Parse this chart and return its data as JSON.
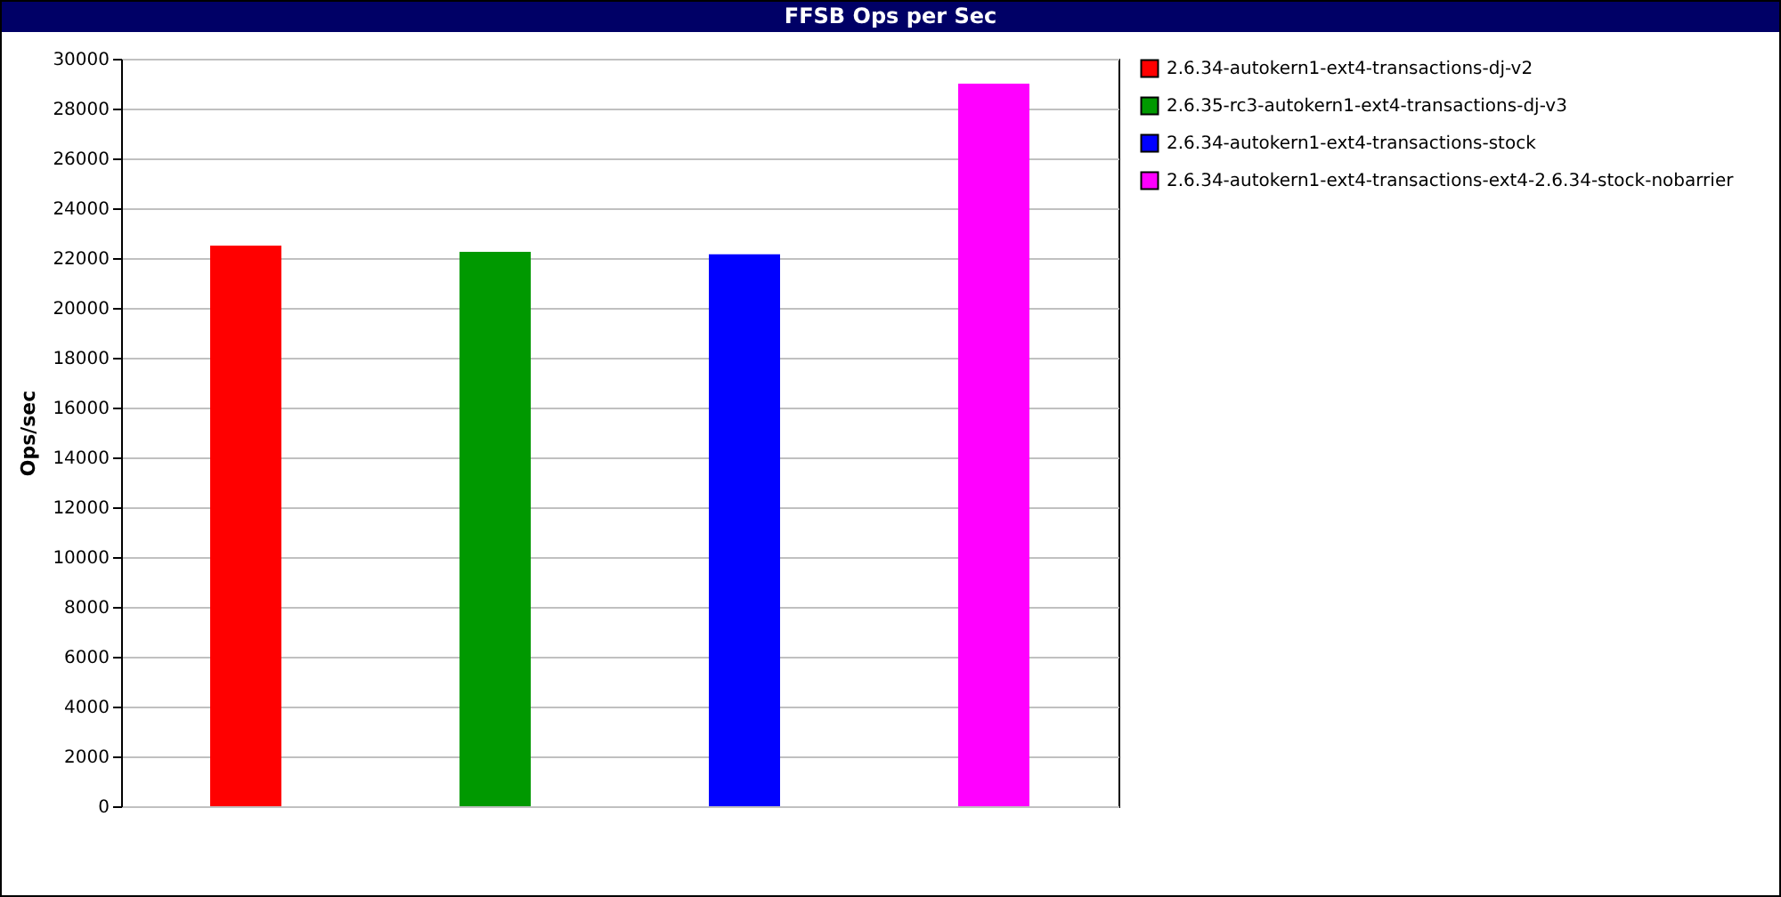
{
  "chart_data": {
    "type": "bar",
    "title": "FFSB Ops per Sec",
    "ylabel": "Ops/sec",
    "categories": [
      null,
      null,
      null,
      null
    ],
    "series": [
      {
        "name": "2.6.34-autokern1-ext4-transactions-dj-v2",
        "color": "#ff0000",
        "values": [
          22500,
          null,
          null,
          null
        ]
      },
      {
        "name": "2.6.35-rc3-autokern1-ext4-transactions-dj-v3",
        "color": "#009900",
        "values": [
          null,
          22250,
          null,
          null
        ]
      },
      {
        "name": "2.6.34-autokern1-ext4-transactions-stock",
        "color": "#0000ff",
        "values": [
          null,
          null,
          22150,
          null
        ]
      },
      {
        "name": "2.6.34-autokern1-ext4-transactions-ext4-2.6.34-stock-nobarrier",
        "color": "#ff00ff",
        "values": [
          null,
          null,
          null,
          29000
        ]
      }
    ],
    "ylim": [
      0,
      30000
    ],
    "yticks": [
      0,
      2000,
      4000,
      6000,
      8000,
      10000,
      12000,
      14000,
      16000,
      18000,
      20000,
      22000,
      24000,
      26000,
      28000,
      30000
    ],
    "grid": "y",
    "legend": "top right",
    "tick_labels": "y"
  }
}
